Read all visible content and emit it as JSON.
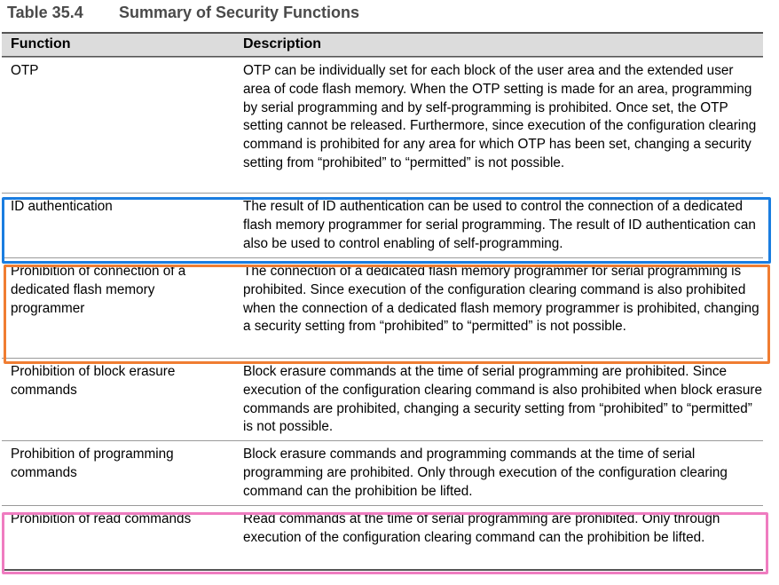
{
  "caption": {
    "number": "Table 35.4",
    "title": "Summary of Security Functions"
  },
  "table": {
    "headers": {
      "function": "Function",
      "description": "Description"
    },
    "rows": [
      {
        "function": "OTP",
        "description": "OTP can be individually set for each block of the user area and the extended user area of code flash memory. When the OTP setting is made for an area, programming by serial programming and by self-programming is prohibited. Once set, the OTP setting cannot be released. Furthermore, since execution of the configuration clearing command is prohibited for any area for which OTP has been set, changing a security setting from “prohibited” to “permitted” is not possible."
      },
      {
        "function": "ID authentication",
        "description": "The result of ID authentication can be used to control the connection of a dedicated flash memory programmer for serial programming. The result of ID authentication can also be used to control enabling of self-programming."
      },
      {
        "function": "Prohibition of connection of a dedicated flash memory programmer",
        "description": "The connection of a dedicated flash memory programmer for serial programming is prohibited. Since execution of the configuration clearing command is also prohibited when the connection of a dedicated flash memory programmer is prohibited, changing a security setting from “prohibited” to “permitted” is not possible."
      },
      {
        "function": "Prohibition of block erasure commands",
        "description": "Block erasure commands at the time of serial programming are prohibited. Since execution of the configuration clearing command is also prohibited when block erasure commands are prohibited, changing a security setting from “prohibited” to “permitted” is not possible."
      },
      {
        "function": "Prohibition of programming commands",
        "description": "Block erasure commands and programming commands at the time of serial programming are prohibited. Only through execution of the configuration clearing command can the prohibition be lifted."
      },
      {
        "function": "Prohibition of read commands",
        "description": "Read commands at the time of serial programming are prohibited. Only through execution of the configuration clearing command can the prohibition be lifted."
      }
    ]
  },
  "highlights": {
    "id_authentication": "#1a7de0",
    "connection_prohibition": "#f07d32",
    "read_prohibition": "#ef7cc0"
  }
}
